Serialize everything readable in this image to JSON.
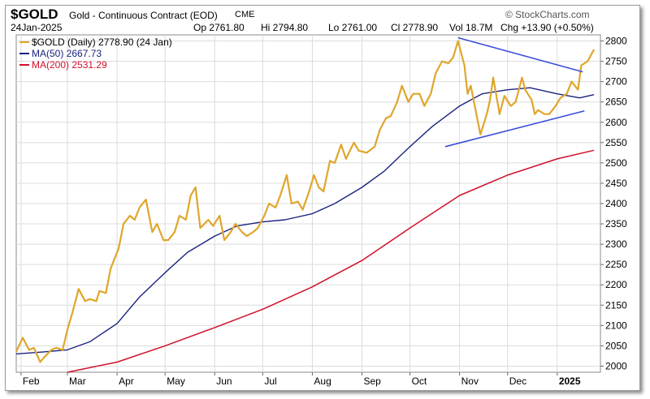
{
  "header": {
    "symbol": "$GOLD",
    "description": "Gold - Continuous Contract (EOD)",
    "exchange": "CME",
    "date": "24Jan-2025",
    "brand": "© StockCharts.com",
    "open": "Op 2761.80",
    "high": "Hi 2794.80",
    "low": "Lo 2761.00",
    "close": "Cl 2778.90",
    "volume": "Vol 18.7M",
    "change": "Chg +13.90 (+0.50%)"
  },
  "legend": {
    "price": "$GOLD (Daily) 2778.90 (24 Jan)",
    "ma50": "MA(50) 2667.73",
    "ma200": "MA(200) 2531.29"
  },
  "colors": {
    "price": "#dfa62b",
    "ma50": "#1a237e",
    "ma200": "#d0102a",
    "trendline": "#3b4ed8",
    "grid": "#dcdcdc"
  },
  "chart_data": {
    "type": "line",
    "y_axis": {
      "side": "right",
      "ylim": [
        1985,
        2815
      ],
      "ticks": [
        2000,
        2050,
        2100,
        2150,
        2200,
        2250,
        2300,
        2350,
        2400,
        2450,
        2500,
        2550,
        2600,
        2650,
        2700,
        2750,
        2800
      ]
    },
    "x_axis": {
      "range": [
        "2024-01-29",
        "2025-01-28"
      ],
      "ticks": [
        {
          "date": "2024-02-01",
          "label": "Feb",
          "bold": false
        },
        {
          "date": "2024-03-01",
          "label": "Mar",
          "bold": false
        },
        {
          "date": "2024-04-01",
          "label": "Apr",
          "bold": false
        },
        {
          "date": "2024-05-01",
          "label": "May",
          "bold": false
        },
        {
          "date": "2024-06-01",
          "label": "Jun",
          "bold": false
        },
        {
          "date": "2024-07-01",
          "label": "Jul",
          "bold": false
        },
        {
          "date": "2024-08-01",
          "label": "Aug",
          "bold": false
        },
        {
          "date": "2024-09-01",
          "label": "Sep",
          "bold": false
        },
        {
          "date": "2024-10-01",
          "label": "Oct",
          "bold": false
        },
        {
          "date": "2024-11-01",
          "label": "Nov",
          "bold": false
        },
        {
          "date": "2024-12-01",
          "label": "Dec",
          "bold": false
        },
        {
          "date": "2025-01-01",
          "label": "2025",
          "bold": true
        }
      ]
    },
    "grid": true,
    "legend_position": "top-left",
    "series": [
      {
        "name": "$GOLD (Daily)",
        "key": "price",
        "points": [
          [
            "2024-01-29",
            2035
          ],
          [
            "2024-02-02",
            2070
          ],
          [
            "2024-02-06",
            2040
          ],
          [
            "2024-02-09",
            2045
          ],
          [
            "2024-02-13",
            2010
          ],
          [
            "2024-02-15",
            2020
          ],
          [
            "2024-02-20",
            2040
          ],
          [
            "2024-02-23",
            2045
          ],
          [
            "2024-02-27",
            2040
          ],
          [
            "2024-03-01",
            2090
          ],
          [
            "2024-03-04",
            2130
          ],
          [
            "2024-03-06",
            2160
          ],
          [
            "2024-03-08",
            2190
          ],
          [
            "2024-03-12",
            2160
          ],
          [
            "2024-03-15",
            2165
          ],
          [
            "2024-03-19",
            2160
          ],
          [
            "2024-03-21",
            2185
          ],
          [
            "2024-03-25",
            2180
          ],
          [
            "2024-03-28",
            2240
          ],
          [
            "2024-04-02",
            2290
          ],
          [
            "2024-04-05",
            2350
          ],
          [
            "2024-04-09",
            2370
          ],
          [
            "2024-04-12",
            2360
          ],
          [
            "2024-04-15",
            2390
          ],
          [
            "2024-04-17",
            2400
          ],
          [
            "2024-04-19",
            2410
          ],
          [
            "2024-04-23",
            2330
          ],
          [
            "2024-04-26",
            2350
          ],
          [
            "2024-04-30",
            2310
          ],
          [
            "2024-05-03",
            2310
          ],
          [
            "2024-05-07",
            2330
          ],
          [
            "2024-05-10",
            2370
          ],
          [
            "2024-05-14",
            2360
          ],
          [
            "2024-05-17",
            2420
          ],
          [
            "2024-05-20",
            2440
          ],
          [
            "2024-05-23",
            2340
          ],
          [
            "2024-05-28",
            2360
          ],
          [
            "2024-05-31",
            2345
          ],
          [
            "2024-06-04",
            2370
          ],
          [
            "2024-06-07",
            2310
          ],
          [
            "2024-06-11",
            2330
          ],
          [
            "2024-06-14",
            2350
          ],
          [
            "2024-06-18",
            2330
          ],
          [
            "2024-06-21",
            2320
          ],
          [
            "2024-06-25",
            2330
          ],
          [
            "2024-06-28",
            2340
          ],
          [
            "2024-07-02",
            2370
          ],
          [
            "2024-07-05",
            2400
          ],
          [
            "2024-07-09",
            2390
          ],
          [
            "2024-07-12",
            2420
          ],
          [
            "2024-07-16",
            2470
          ],
          [
            "2024-07-19",
            2400
          ],
          [
            "2024-07-23",
            2405
          ],
          [
            "2024-07-26",
            2385
          ],
          [
            "2024-07-30",
            2430
          ],
          [
            "2024-08-02",
            2470
          ],
          [
            "2024-08-05",
            2440
          ],
          [
            "2024-08-08",
            2430
          ],
          [
            "2024-08-12",
            2505
          ],
          [
            "2024-08-15",
            2500
          ],
          [
            "2024-08-19",
            2545
          ],
          [
            "2024-08-22",
            2510
          ],
          [
            "2024-08-27",
            2550
          ],
          [
            "2024-08-30",
            2530
          ],
          [
            "2024-09-04",
            2525
          ],
          [
            "2024-09-09",
            2540
          ],
          [
            "2024-09-12",
            2580
          ],
          [
            "2024-09-16",
            2610
          ],
          [
            "2024-09-19",
            2615
          ],
          [
            "2024-09-23",
            2650
          ],
          [
            "2024-09-26",
            2690
          ],
          [
            "2024-09-30",
            2650
          ],
          [
            "2024-10-03",
            2670
          ],
          [
            "2024-10-07",
            2670
          ],
          [
            "2024-10-10",
            2640
          ],
          [
            "2024-10-14",
            2670
          ],
          [
            "2024-10-17",
            2720
          ],
          [
            "2024-10-21",
            2750
          ],
          [
            "2024-10-25",
            2745
          ],
          [
            "2024-10-28",
            2760
          ],
          [
            "2024-10-31",
            2800
          ],
          [
            "2024-11-04",
            2740
          ],
          [
            "2024-11-06",
            2670
          ],
          [
            "2024-11-08",
            2690
          ],
          [
            "2024-11-12",
            2610
          ],
          [
            "2024-11-14",
            2570
          ],
          [
            "2024-11-18",
            2620
          ],
          [
            "2024-11-20",
            2655
          ],
          [
            "2024-11-22",
            2710
          ],
          [
            "2024-11-26",
            2620
          ],
          [
            "2024-11-29",
            2665
          ],
          [
            "2024-12-03",
            2640
          ],
          [
            "2024-12-06",
            2650
          ],
          [
            "2024-12-10",
            2710
          ],
          [
            "2024-12-12",
            2680
          ],
          [
            "2024-12-16",
            2655
          ],
          [
            "2024-12-18",
            2620
          ],
          [
            "2024-12-20",
            2630
          ],
          [
            "2024-12-24",
            2620
          ],
          [
            "2024-12-27",
            2620
          ],
          [
            "2024-12-31",
            2640
          ],
          [
            "2025-01-03",
            2660
          ],
          [
            "2025-01-07",
            2670
          ],
          [
            "2025-01-10",
            2700
          ],
          [
            "2025-01-14",
            2680
          ],
          [
            "2025-01-16",
            2740
          ],
          [
            "2025-01-20",
            2750
          ],
          [
            "2025-01-22",
            2765
          ],
          [
            "2025-01-24",
            2779
          ]
        ]
      },
      {
        "name": "MA(50)",
        "key": "ma50",
        "points": [
          [
            "2024-01-29",
            2030
          ],
          [
            "2024-02-15",
            2035
          ],
          [
            "2024-03-01",
            2040
          ],
          [
            "2024-03-15",
            2060
          ],
          [
            "2024-04-01",
            2105
          ],
          [
            "2024-04-15",
            2170
          ],
          [
            "2024-05-01",
            2230
          ],
          [
            "2024-05-15",
            2280
          ],
          [
            "2024-06-01",
            2320
          ],
          [
            "2024-06-15",
            2345
          ],
          [
            "2024-07-01",
            2355
          ],
          [
            "2024-07-15",
            2360
          ],
          [
            "2024-08-01",
            2375
          ],
          [
            "2024-08-15",
            2400
          ],
          [
            "2024-09-01",
            2440
          ],
          [
            "2024-09-15",
            2480
          ],
          [
            "2024-10-01",
            2540
          ],
          [
            "2024-10-15",
            2590
          ],
          [
            "2024-11-01",
            2640
          ],
          [
            "2024-11-15",
            2670
          ],
          [
            "2024-12-01",
            2680
          ],
          [
            "2024-12-15",
            2685
          ],
          [
            "2025-01-01",
            2670
          ],
          [
            "2025-01-15",
            2660
          ],
          [
            "2025-01-24",
            2668
          ]
        ]
      },
      {
        "name": "MA(200)",
        "key": "ma200",
        "points": [
          [
            "2024-03-01",
            1985
          ],
          [
            "2024-04-01",
            2010
          ],
          [
            "2024-05-01",
            2050
          ],
          [
            "2024-06-01",
            2095
          ],
          [
            "2024-07-01",
            2140
          ],
          [
            "2024-08-01",
            2195
          ],
          [
            "2024-09-01",
            2260
          ],
          [
            "2024-10-01",
            2340
          ],
          [
            "2024-11-01",
            2420
          ],
          [
            "2024-12-01",
            2470
          ],
          [
            "2025-01-01",
            2510
          ],
          [
            "2025-01-24",
            2531
          ]
        ]
      }
    ],
    "annotations": [
      {
        "type": "trendline",
        "start": [
          "2024-10-31",
          2808
        ],
        "end": [
          "2025-01-17",
          2724
        ]
      },
      {
        "type": "trendline",
        "start": [
          "2024-10-23",
          2540
        ],
        "end": [
          "2025-01-18",
          2628
        ]
      }
    ]
  }
}
